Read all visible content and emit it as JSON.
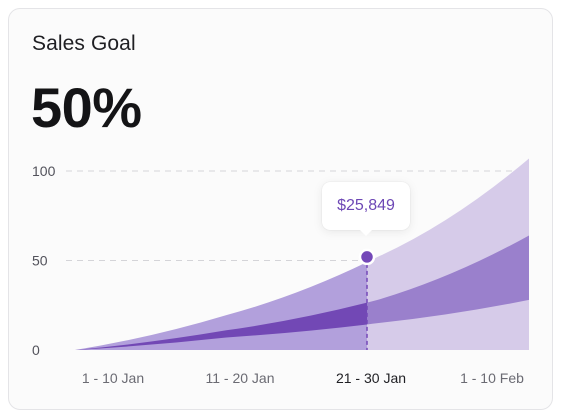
{
  "card": {
    "title": "Sales Goal",
    "value": "50%"
  },
  "tooltip": {
    "value": "$25,849"
  },
  "colors": {
    "goal_band": "#d6cbe9",
    "top_band": "#b2a0dc",
    "middle_band": "#9a80cc",
    "actual_band": "#7248b5",
    "highlight": "#7448b8"
  },
  "chart_data": {
    "type": "area",
    "categories": [
      "1 - 10 Jan",
      "11 - 20 Jan",
      "21 - 30 Jan",
      "1 - 10 Feb"
    ],
    "selected_category": "21 - 30 Jan",
    "ylim": [
      0,
      100
    ],
    "yticks": [
      "100",
      "50",
      "0"
    ],
    "grid": "horizontal dashed",
    "highlight_point": {
      "category": "21 - 30 Jan",
      "y": 52
    },
    "series": [
      {
        "x": [
          0,
          1,
          2,
          3
        ],
        "values": [
          0,
          19.5,
          52,
          107
        ]
      },
      {
        "x": [
          0,
          1,
          2,
          3
        ],
        "values": [
          0,
          11,
          28,
          64
        ]
      },
      {
        "x": [
          0,
          1,
          2,
          3
        ],
        "values": [
          0,
          7,
          15,
          28
        ]
      }
    ]
  }
}
